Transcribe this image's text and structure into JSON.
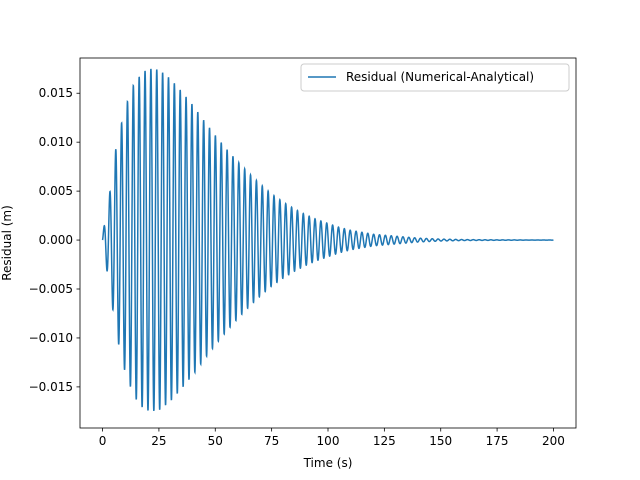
{
  "chart_data": {
    "type": "line",
    "title": "",
    "xlabel": "Time (s)",
    "ylabel": "Residual (m)",
    "xlim": [
      -10,
      210
    ],
    "ylim": [
      -0.0192,
      0.0186
    ],
    "xticks": [
      0,
      25,
      50,
      75,
      100,
      125,
      150,
      175,
      200
    ],
    "xtick_labels": [
      "0",
      "25",
      "50",
      "75",
      "100",
      "125",
      "150",
      "175",
      "200"
    ],
    "yticks": [
      -0.015,
      -0.01,
      -0.005,
      0.0,
      0.005,
      0.01,
      0.015
    ],
    "ytick_labels": [
      "−0.015",
      "−0.010",
      "−0.005",
      "0.000",
      "0.005",
      "0.010",
      "0.015"
    ],
    "grid": false,
    "legend_position": "upper right",
    "series": [
      {
        "name": "Residual (Numerical-Analytical)",
        "color": "#1f77b4",
        "period_s": 2.6,
        "peak_time_s": 21,
        "peak_amplitude_m": 0.0175,
        "envelope_samples": {
          "t": [
            0,
            3,
            6,
            10,
            14,
            18,
            21,
            25,
            30,
            35,
            40,
            45,
            50,
            55,
            60,
            65,
            70,
            75,
            80,
            85,
            90,
            95,
            100,
            105,
            110,
            115,
            120,
            125,
            130,
            135,
            140,
            145,
            150,
            160,
            170,
            180,
            190,
            200
          ],
          "amplitude": [
            0.0005,
            0.0045,
            0.0095,
            0.0135,
            0.016,
            0.0172,
            0.0175,
            0.0174,
            0.0165,
            0.0152,
            0.0138,
            0.0122,
            0.0107,
            0.0093,
            0.008,
            0.0068,
            0.0057,
            0.0047,
            0.0039,
            0.0032,
            0.0026,
            0.0021,
            0.0017,
            0.0013,
            0.001,
            0.0008,
            0.0006,
            0.0005,
            0.0004,
            0.0003,
            0.0002,
            0.00015,
            0.0001,
            5e-05,
            3e-05,
            2e-05,
            1e-05,
            1e-05
          ]
        }
      }
    ]
  }
}
